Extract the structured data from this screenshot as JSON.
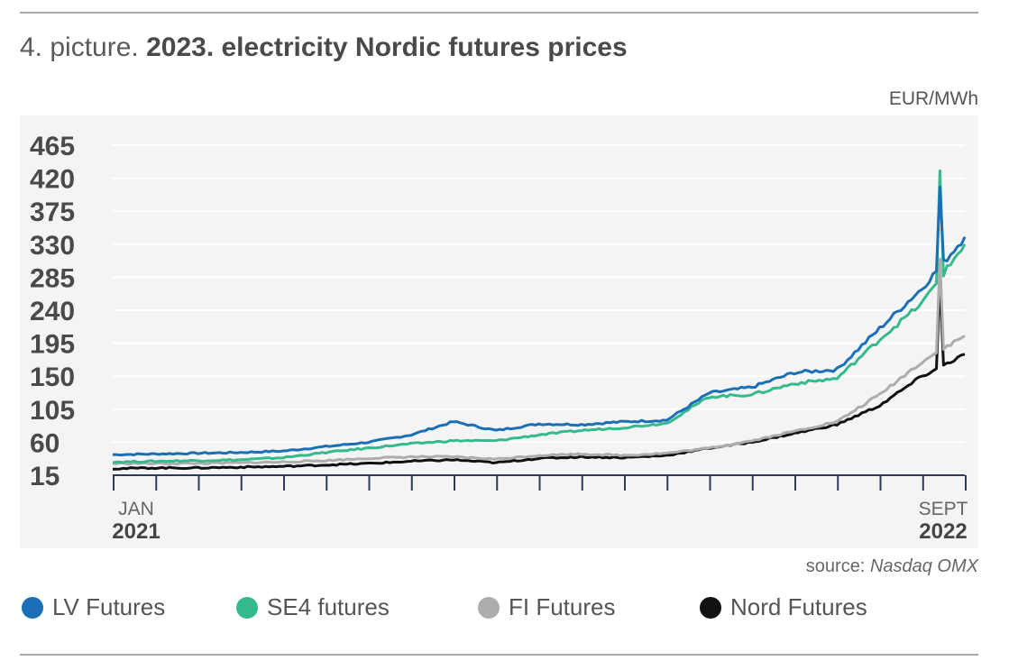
{
  "header": {
    "prefix": "4. picture.",
    "title": "2023. electricity Nordic futures prices"
  },
  "unit_label": "EUR/MWh",
  "source": {
    "label": "source:",
    "name": "Nasdaq OMX"
  },
  "chart_data": {
    "type": "line",
    "title": "2023. electricity Nordic futures prices",
    "ylabel": "EUR/MWh",
    "xlabel": "",
    "ylim": [
      15,
      465
    ],
    "yticks": [
      465,
      420,
      375,
      330,
      285,
      240,
      195,
      150,
      105,
      60,
      15
    ],
    "x_start_label": {
      "month": "JAN",
      "year": "2021"
    },
    "x_end_label": {
      "month": "SEPT",
      "year": "2022"
    },
    "x_domain": [
      "2021-01",
      "2022-09"
    ],
    "grid": true,
    "legend_position": "bottom",
    "x": [
      "2021-01",
      "2021-02",
      "2021-03",
      "2021-04",
      "2021-05",
      "2021-06",
      "2021-07",
      "2021-08",
      "2021-09",
      "2021-10",
      "2021-11",
      "2021-12",
      "2022-01",
      "2022-02",
      "2022-03",
      "2022-04",
      "2022-05",
      "2022-06",
      "2022-07",
      "2022-08",
      "2022-09"
    ],
    "series": [
      {
        "name": "LV Futures",
        "color": "#1a6fb6",
        "values": [
          43,
          44,
          45,
          46,
          48,
          54,
          60,
          70,
          88,
          76,
          85,
          84,
          88,
          90,
          127,
          135,
          155,
          159,
          215,
          270,
          340
        ]
      },
      {
        "name": "SE4 futures",
        "color": "#35b98e",
        "values": [
          33,
          34,
          35,
          36,
          39,
          46,
          52,
          58,
          62,
          62,
          70,
          76,
          80,
          86,
          122,
          125,
          140,
          147,
          200,
          250,
          330
        ]
      },
      {
        "name": "FI Futures",
        "color": "#adadad",
        "values": [
          31,
          31,
          31,
          32,
          33,
          35,
          38,
          40,
          40,
          37,
          42,
          44,
          42,
          45,
          52,
          62,
          75,
          88,
          125,
          170,
          205
        ]
      },
      {
        "name": "Nord Futures",
        "color": "#111111",
        "values": [
          24,
          25,
          25,
          26,
          27,
          29,
          31,
          34,
          36,
          32,
          38,
          40,
          39,
          42,
          52,
          60,
          72,
          84,
          110,
          150,
          180
        ]
      }
    ],
    "annotations": [
      {
        "x": "2022-08",
        "series": "SE4 futures",
        "value": 430,
        "label": ""
      },
      {
        "x": "2022-08",
        "series": "LV Futures",
        "value": 408,
        "label": ""
      },
      {
        "x": "2022-08",
        "series": "FI Futures",
        "value": 310,
        "label": ""
      },
      {
        "x": "2022-08",
        "series": "Nord Futures",
        "value": 280,
        "label": ""
      }
    ]
  }
}
